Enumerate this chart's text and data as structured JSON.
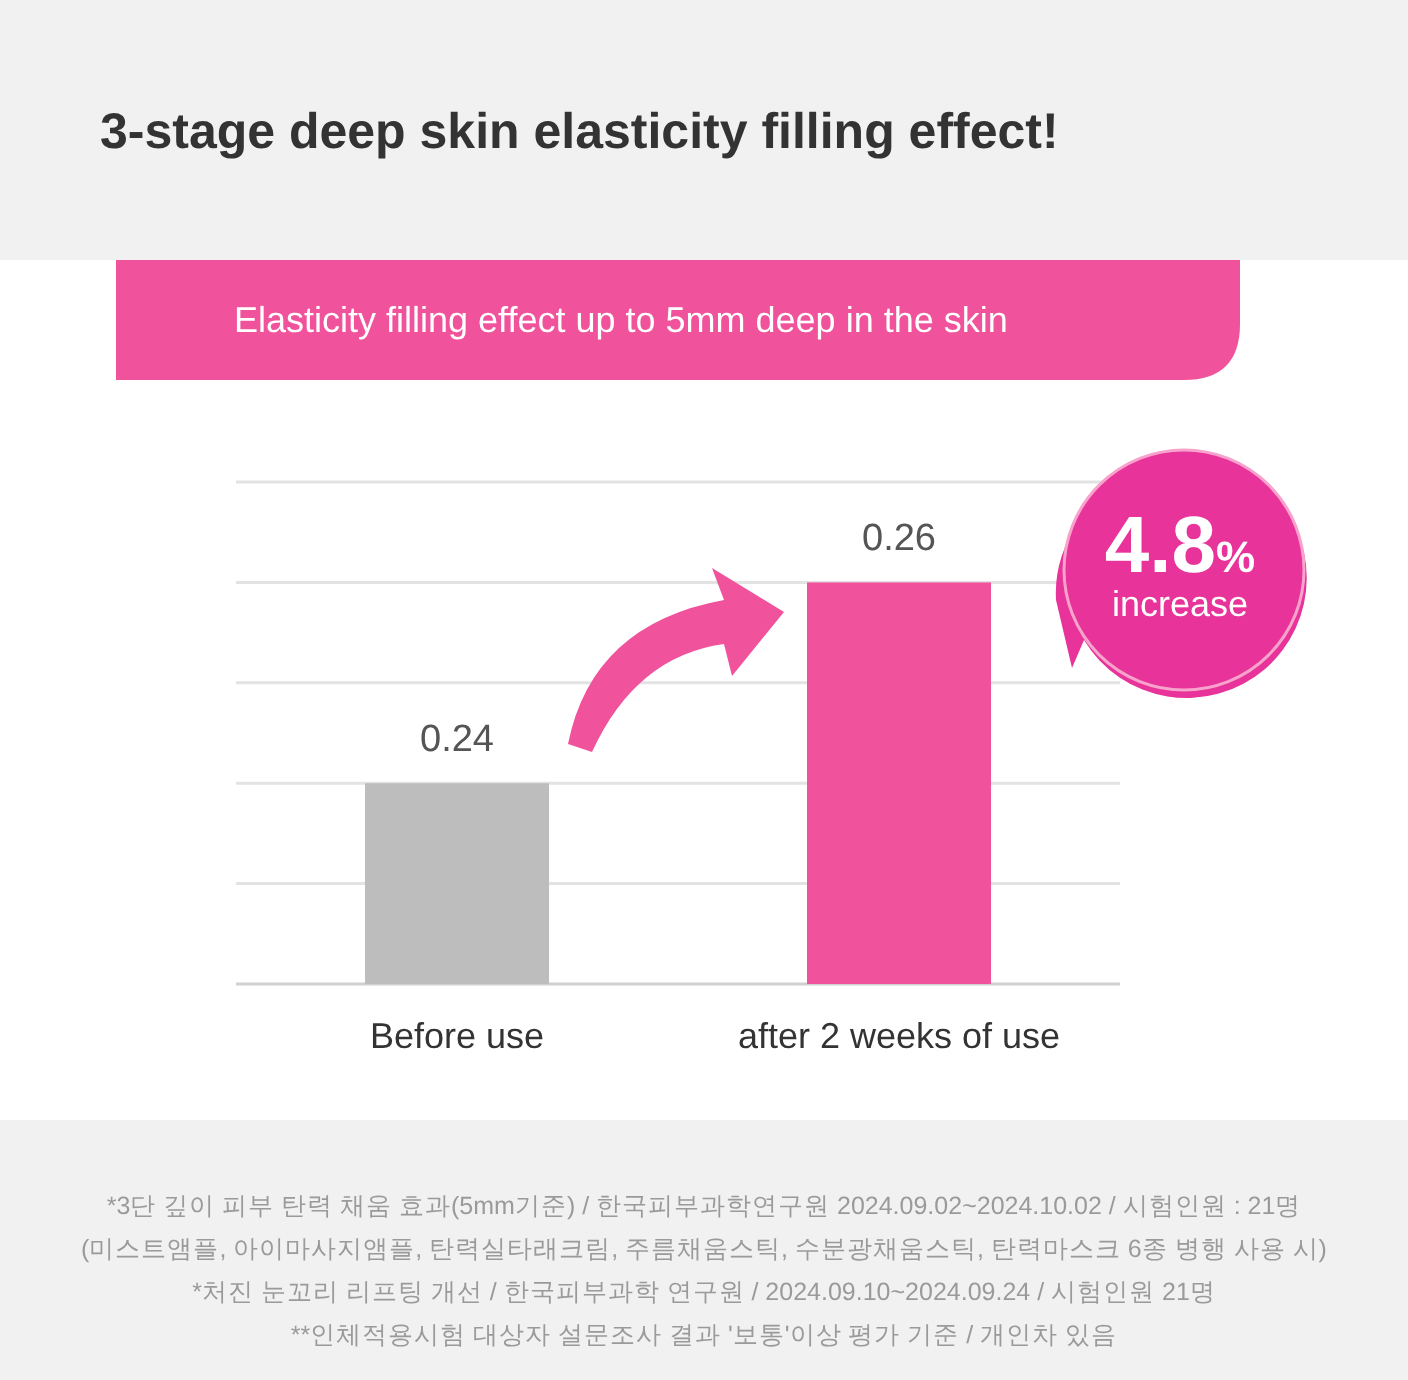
{
  "chart_data": {
    "type": "bar",
    "title": "3-stage deep skin elasticity filling effect!",
    "subtitle": "Elasticity filling effect up to 5mm deep in the skin",
    "categories": [
      "Before use",
      "after 2 weeks of use"
    ],
    "values": [
      0.24,
      0.26
    ],
    "colors": [
      "#bdbdbd",
      "#f0529c"
    ],
    "ylim": [
      0.22,
      0.27
    ],
    "yticks": [
      {
        "value": 0.23,
        "label": null
      },
      {
        "value": 0.24,
        "label": null
      },
      {
        "value": 0.25,
        "label": null
      },
      {
        "value": 0.26,
        "label": null
      },
      {
        "value": 0.27,
        "label": null
      }
    ],
    "tick_labels": "x",
    "grid": "y",
    "data_labels": true,
    "annotations": [
      "4.8%",
      "increase",
      "*3단 깊이 피부 탄력 채움 효과(5mm기준) / 한국피부과학연구원  2024.09.02~2024.10.02 / 시험인원 : 21명",
      "(미스트앰플, 아이마사지앰플, 탄력실타래크림, 주름채움스틱, 수분광채움스틱, 탄력마스크 6종 병행 사용 시)",
      "*처진 눈꼬리 리프팅 개선 / 한국피부과학 연구원 / 2024.09.10~2024.09.24 / 시험인원 21명",
      "**인체적용시험 대상자 설문조사 결과 '보통'이상 평가 기준 / 개인차 있음"
    ]
  }
}
